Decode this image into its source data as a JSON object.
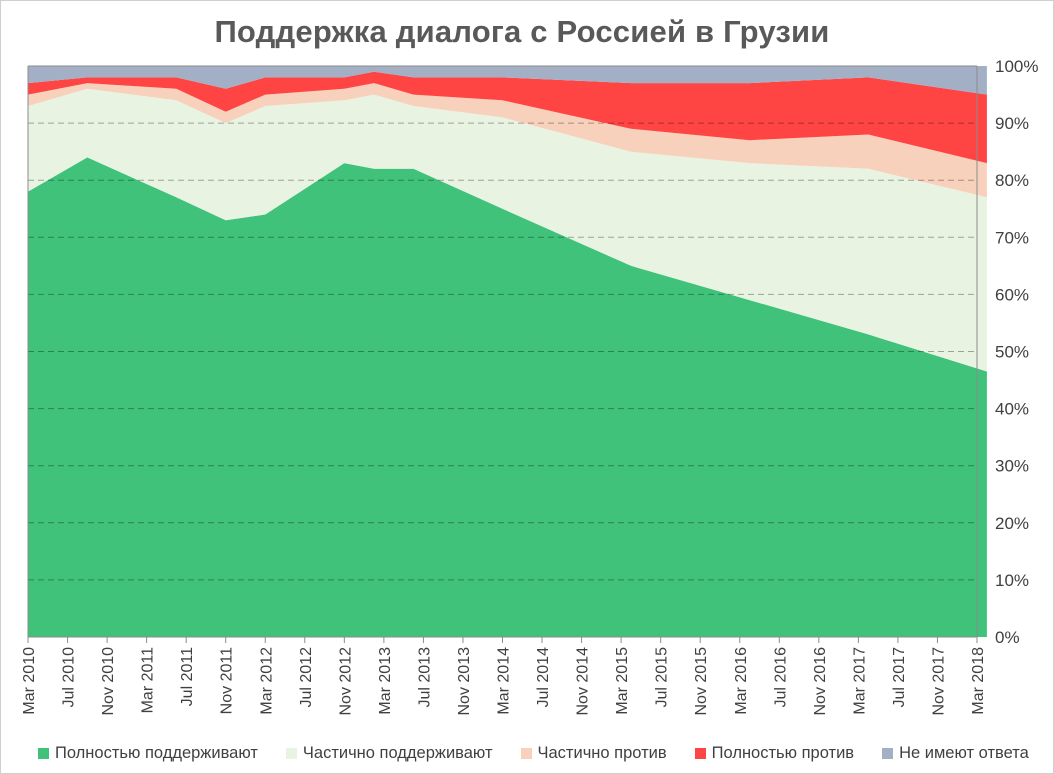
{
  "chart_data": {
    "type": "area",
    "stacked": true,
    "title": "Поддержка диалога с Россией в Грузии",
    "xlabel": "",
    "ylabel": "",
    "ylim": [
      0,
      100
    ],
    "y_axis_position": "right",
    "y_ticks": [
      "0%",
      "10%",
      "20%",
      "30%",
      "40%",
      "50%",
      "60%",
      "70%",
      "80%",
      "90%",
      "100%"
    ],
    "x_tick_labels": [
      "Mar 2010",
      "Jul 2010",
      "Nov 2010",
      "Mar 2011",
      "Jul 2011",
      "Nov 2011",
      "Mar 2012",
      "Jul 2012",
      "Nov 2012",
      "Mar 2013",
      "Jul 2013",
      "Nov 2013",
      "Mar 2014",
      "Jul 2014",
      "Nov 2014",
      "Mar 2015",
      "Jul 2015",
      "Nov 2015",
      "Mar 2016",
      "Jul 2016",
      "Nov 2016",
      "Mar 2017",
      "Jul 2017",
      "Nov 2017",
      "Mar 2018"
    ],
    "grid": "horizontal dashed",
    "legend_position": "bottom",
    "x": [
      "Mar 2010",
      "Sep 2010",
      "Jun 2011",
      "Nov 2011",
      "Mar 2012",
      "Nov 2012",
      "Feb 2013",
      "Jun 2013",
      "Mar 2014",
      "Apr 2015",
      "Apr 2016",
      "Apr 2017",
      "Apr 2018"
    ],
    "series": [
      {
        "name": "Полностью поддерживают",
        "color": "#41c27a",
        "values": [
          78,
          84,
          77,
          73,
          74,
          83,
          82,
          82,
          75,
          65,
          59,
          53,
          46.5
        ]
      },
      {
        "name": "Частично поддерживают",
        "color": "#e8f3e2",
        "values": [
          15,
          12,
          17,
          17,
          19,
          11,
          13,
          11,
          16,
          20,
          24,
          29,
          30.5
        ]
      },
      {
        "name": "Частично против",
        "color": "#f8d1bd",
        "values": [
          2,
          1,
          2,
          2,
          2,
          2,
          2,
          2,
          3,
          4,
          4,
          6,
          6
        ]
      },
      {
        "name": "Полностью против",
        "color": "#ff4444",
        "values": [
          2,
          1,
          2,
          4,
          3,
          2,
          2,
          3,
          4,
          8,
          10,
          10,
          12
        ]
      },
      {
        "name": "Не имеют ответа",
        "color": "#a2afc4",
        "values": [
          3,
          2,
          2,
          4,
          2,
          2,
          1,
          2,
          2,
          3,
          3,
          2,
          5
        ]
      }
    ]
  }
}
